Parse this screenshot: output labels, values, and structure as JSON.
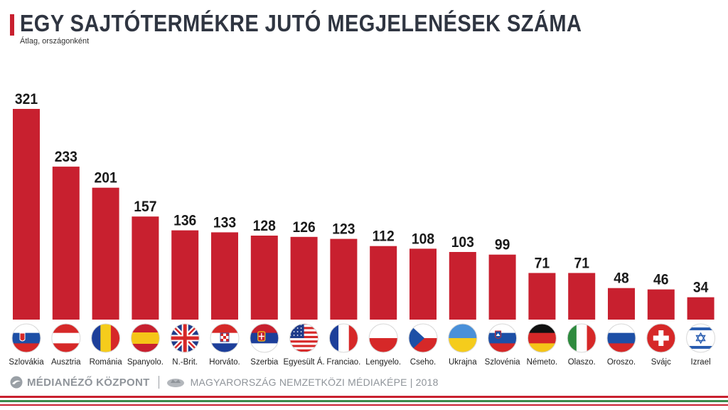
{
  "title": "EGY SAJTÓTERMÉKRE JUTÓ MEGJELENÉSEK SZÁMA",
  "subtitle": "Átlag, országonként",
  "colors": {
    "bar": "#c8202f",
    "title": "#2f3541",
    "accent": "#c8202f"
  },
  "chart_data": {
    "type": "bar",
    "title": "EGY SAJTÓTERMÉKRE JUTÓ MEGJELENÉSEK SZÁMA",
    "subtitle": "Átlag, országonként",
    "xlabel": "",
    "ylabel": "",
    "ylim": [
      0,
      321
    ],
    "grid": false,
    "data_labels": true,
    "categories": [
      "Szlovákia",
      "Ausztria",
      "Románia",
      "Spanyolo.",
      "N.-Brit.",
      "Horváto.",
      "Szerbia",
      "Egyesült Á.",
      "Franciao.",
      "Lengyelo.",
      "Cseho.",
      "Ukrajna",
      "Szlovénia",
      "Németo.",
      "Olaszo.",
      "Oroszo.",
      "Svájc",
      "Izrael"
    ],
    "values": [
      321,
      233,
      201,
      157,
      136,
      133,
      128,
      126,
      123,
      112,
      108,
      103,
      99,
      71,
      71,
      48,
      46,
      34
    ],
    "flags": [
      "flag-slovakia",
      "flag-austria",
      "flag-romania",
      "flag-spain",
      "flag-uk",
      "flag-croatia",
      "flag-serbia",
      "flag-usa",
      "flag-france",
      "flag-poland",
      "flag-czechia",
      "flag-ukraine",
      "flag-slovenia",
      "flag-germany",
      "flag-italy",
      "flag-russia",
      "flag-switzerland",
      "flag-israel"
    ]
  },
  "footer": {
    "brand": "MÉDIANÉZŐ KÖZPONT",
    "tagline": "MAGYARORSZÁG NEMZETKÖZI MÉDIAKÉPE | 2018",
    "brand_icon": "medianezo-logo-icon",
    "emblem_icon": "crown-emblem-icon"
  }
}
